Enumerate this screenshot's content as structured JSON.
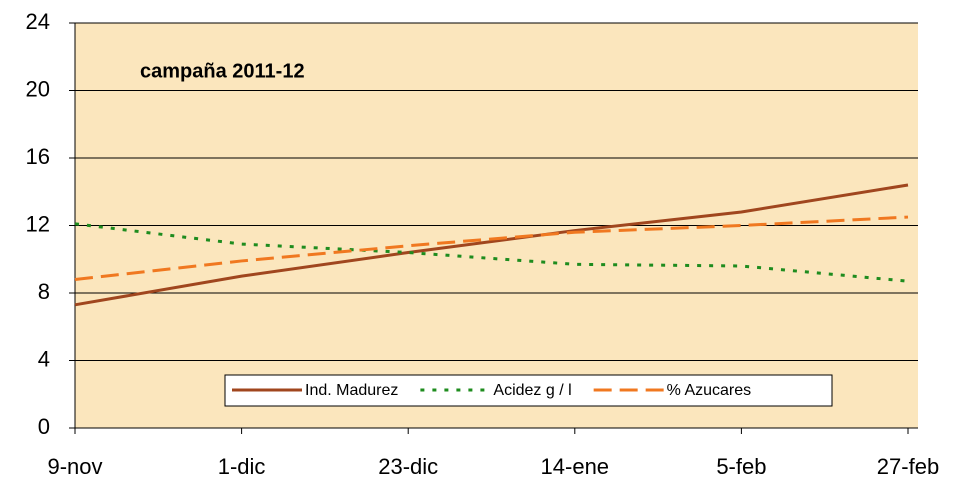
{
  "chart_data": {
    "type": "line",
    "title": "campaña 2011-12",
    "categories": [
      "9-nov",
      "1-dic",
      "23-dic",
      "14-ene",
      "5-feb",
      "27-feb"
    ],
    "series": [
      {
        "name": "Ind. Madurez",
        "color": "#a0461e",
        "values": [
          7.3,
          9.0,
          10.4,
          11.7,
          12.8,
          14.4
        ]
      },
      {
        "name": "Acidez g / l",
        "color": "#1e8c1e",
        "values": [
          12.1,
          10.9,
          10.4,
          9.7,
          9.6,
          8.7
        ]
      },
      {
        "name": "% Azucares",
        "color": "#f07820",
        "values": [
          8.8,
          9.9,
          10.8,
          11.6,
          12.0,
          12.5
        ]
      }
    ],
    "ylim": [
      0,
      24
    ],
    "yticks": [
      0,
      4,
      8,
      12,
      16,
      20,
      24
    ],
    "grid": true
  }
}
